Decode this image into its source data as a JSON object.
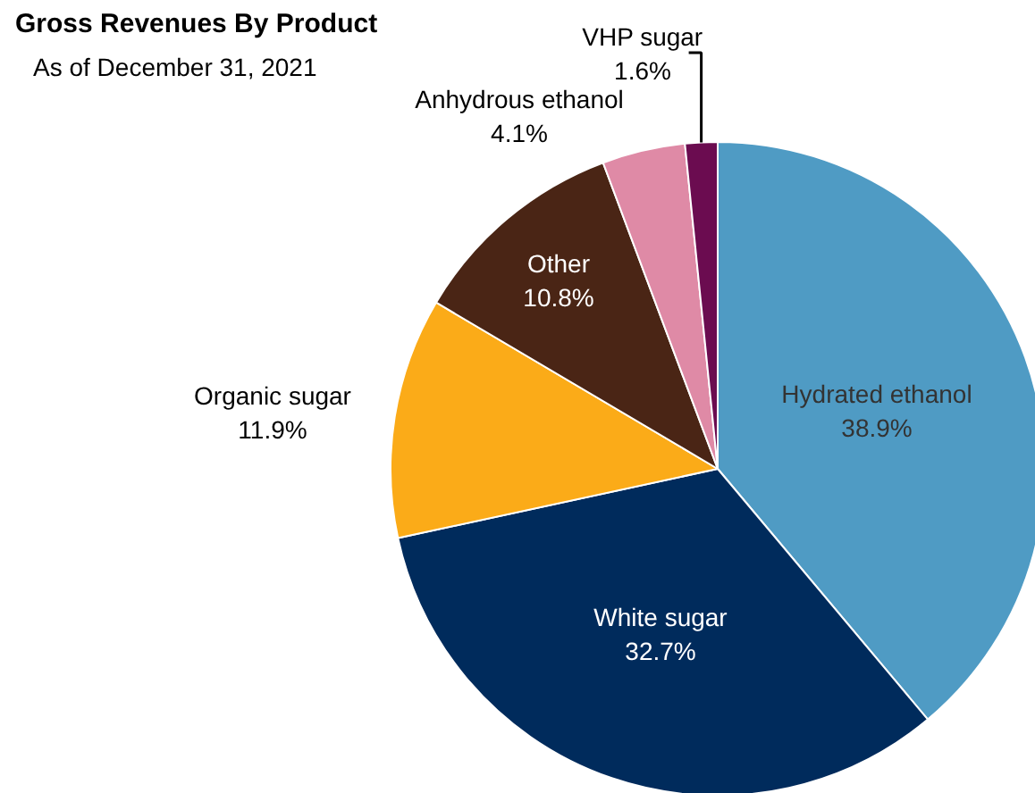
{
  "chart_data": {
    "type": "pie",
    "title": "Gross Revenues By Product",
    "subtitle": "As of December 31, 2021",
    "categories": [
      "Hydrated ethanol",
      "White sugar",
      "Organic sugar",
      "Other",
      "Anhydrous ethanol",
      "VHP sugar"
    ],
    "values": [
      38.9,
      32.7,
      11.9,
      10.8,
      4.1,
      1.6
    ],
    "value_labels": [
      "38.9%",
      "32.7%",
      "11.9%",
      "10.8%",
      "4.1%",
      "1.6%"
    ],
    "colors": [
      "#4f9bc4",
      "#002b5c",
      "#fbab18",
      "#4a2515",
      "#df8aa6",
      "#6b0c50"
    ]
  }
}
